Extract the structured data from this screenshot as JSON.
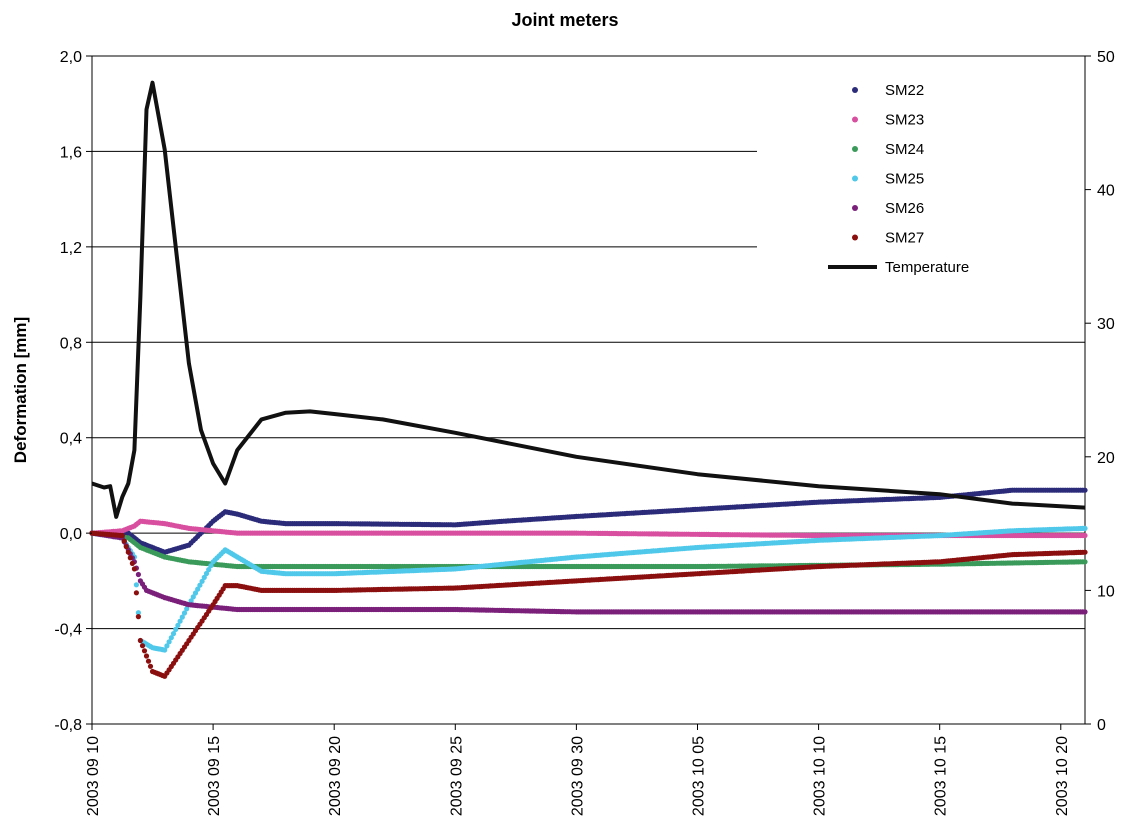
{
  "chart_data": {
    "type": "scatter",
    "title": "Joint meters",
    "ylabel": "Deformation [mm]",
    "y2label": "",
    "x_start": "2003-09-10",
    "x_end": "2003-10-21",
    "xticks": [
      "2003 09 10",
      "2003 09 15",
      "2003 09 20",
      "2003 09 25",
      "2003 09 30",
      "2003 10 05",
      "2003 10 10",
      "2003 10 15",
      "2003 10 20"
    ],
    "yticks": [
      "-0,8",
      "-0,4",
      "0,0",
      "0,4",
      "0,8",
      "1,2",
      "1,6",
      "2,0"
    ],
    "y2ticks": [
      "0",
      "10",
      "20",
      "30",
      "40",
      "50"
    ],
    "ylim": [
      -0.8,
      2.0
    ],
    "y2lim": [
      0,
      50
    ],
    "grid": "horizontal",
    "legend_position": "top-right",
    "series": [
      {
        "name": "SM22",
        "color": "#2b2b7a",
        "marker": "dot",
        "x": [
          "2003-09-10",
          "2003-09-11 12:00",
          "2003-09-12",
          "2003-09-13",
          "2003-09-14",
          "2003-09-15",
          "2003-09-15 12:00",
          "2003-09-16",
          "2003-09-17",
          "2003-09-18",
          "2003-09-20",
          "2003-09-25",
          "2003-09-27",
          "2003-09-30",
          "2003-10-05",
          "2003-10-10",
          "2003-10-15",
          "2003-10-18",
          "2003-10-21"
        ],
        "y": [
          0.0,
          0.0,
          -0.04,
          -0.08,
          -0.05,
          0.05,
          0.09,
          0.08,
          0.05,
          0.04,
          0.04,
          0.035,
          0.05,
          0.07,
          0.1,
          0.13,
          0.15,
          0.18,
          0.18
        ]
      },
      {
        "name": "SM23",
        "color": "#d94fa0",
        "marker": "dot",
        "x": [
          "2003-09-10",
          "2003-09-11 06:00",
          "2003-09-11 18:00",
          "2003-09-12",
          "2003-09-13",
          "2003-09-14",
          "2003-09-15",
          "2003-09-16",
          "2003-09-20",
          "2003-09-25",
          "2003-09-30",
          "2003-10-05",
          "2003-10-10",
          "2003-10-15",
          "2003-10-21"
        ],
        "y": [
          0.0,
          0.01,
          0.03,
          0.05,
          0.04,
          0.02,
          0.01,
          0.0,
          0.0,
          0.0,
          0.0,
          -0.005,
          -0.01,
          -0.01,
          -0.01
        ]
      },
      {
        "name": "SM24",
        "color": "#3a9a5a",
        "marker": "dot",
        "x": [
          "2003-09-10",
          "2003-09-11 12:00",
          "2003-09-12",
          "2003-09-13",
          "2003-09-14",
          "2003-09-15",
          "2003-09-16",
          "2003-09-18",
          "2003-09-20",
          "2003-09-25",
          "2003-09-30",
          "2003-10-05",
          "2003-10-10",
          "2003-10-15",
          "2003-10-21"
        ],
        "y": [
          0.0,
          -0.02,
          -0.06,
          -0.1,
          -0.12,
          -0.13,
          -0.14,
          -0.14,
          -0.14,
          -0.14,
          -0.14,
          -0.14,
          -0.135,
          -0.13,
          -0.12
        ]
      },
      {
        "name": "SM25",
        "color": "#4fc8ea",
        "marker": "dot",
        "x": [
          "2003-09-10",
          "2003-09-11 06:00",
          "2003-09-11 18:00",
          "2003-09-12",
          "2003-09-12 12:00",
          "2003-09-13",
          "2003-09-14",
          "2003-09-15",
          "2003-09-15 12:00",
          "2003-09-16",
          "2003-09-17",
          "2003-09-18",
          "2003-09-20",
          "2003-09-25",
          "2003-09-30",
          "2003-10-05",
          "2003-10-10",
          "2003-10-15",
          "2003-10-18",
          "2003-10-21"
        ],
        "y": [
          0.0,
          -0.02,
          -0.1,
          -0.45,
          -0.48,
          -0.49,
          -0.3,
          -0.12,
          -0.07,
          -0.1,
          -0.16,
          -0.17,
          -0.17,
          -0.15,
          -0.1,
          -0.06,
          -0.03,
          -0.01,
          0.01,
          0.02
        ]
      },
      {
        "name": "SM26",
        "color": "#7a1f7a",
        "marker": "dot",
        "x": [
          "2003-09-10",
          "2003-09-11 06:00",
          "2003-09-11 18:00",
          "2003-09-12",
          "2003-09-12 06:00",
          "2003-09-13",
          "2003-09-14",
          "2003-09-15",
          "2003-09-16",
          "2003-09-20",
          "2003-09-25",
          "2003-09-30",
          "2003-10-05",
          "2003-10-10",
          "2003-10-15",
          "2003-10-21"
        ],
        "y": [
          0.0,
          -0.02,
          -0.12,
          -0.2,
          -0.24,
          -0.27,
          -0.3,
          -0.31,
          -0.32,
          -0.32,
          -0.32,
          -0.33,
          -0.33,
          -0.33,
          -0.33,
          -0.33
        ]
      },
      {
        "name": "SM27",
        "color": "#8b0f0f",
        "marker": "dot",
        "x": [
          "2003-09-10",
          "2003-09-11 06:00",
          "2003-09-11 18:00",
          "2003-09-12",
          "2003-09-12 12:00",
          "2003-09-13",
          "2003-09-14",
          "2003-09-15",
          "2003-09-15 12:00",
          "2003-09-16",
          "2003-09-17",
          "2003-09-20",
          "2003-09-25",
          "2003-09-30",
          "2003-10-05",
          "2003-10-10",
          "2003-10-15",
          "2003-10-18",
          "2003-10-21"
        ],
        "y": [
          0.0,
          -0.01,
          -0.15,
          -0.45,
          -0.58,
          -0.6,
          -0.45,
          -0.3,
          -0.22,
          -0.22,
          -0.24,
          -0.24,
          -0.23,
          -0.2,
          -0.17,
          -0.14,
          -0.12,
          -0.09,
          -0.08
        ]
      },
      {
        "name": "Temperature",
        "color": "#111111",
        "marker": "line",
        "axis": "right",
        "x": [
          "2003-09-10",
          "2003-09-10 12:00",
          "2003-09-10 18:00",
          "2003-09-11",
          "2003-09-11 06:00",
          "2003-09-11 12:00",
          "2003-09-11 18:00",
          "2003-09-12",
          "2003-09-12 06:00",
          "2003-09-12 12:00",
          "2003-09-13",
          "2003-09-13 12:00",
          "2003-09-14",
          "2003-09-14 12:00",
          "2003-09-15",
          "2003-09-15 12:00",
          "2003-09-16",
          "2003-09-17",
          "2003-09-18",
          "2003-09-19",
          "2003-09-20",
          "2003-09-22",
          "2003-09-25",
          "2003-09-30",
          "2003-10-05",
          "2003-10-10",
          "2003-10-15",
          "2003-10-18",
          "2003-10-21"
        ],
        "y": [
          18.0,
          17.7,
          17.8,
          15.5,
          17.0,
          18.0,
          20.5,
          32.0,
          46.0,
          48.0,
          43.0,
          35.0,
          27.0,
          22.0,
          19.5,
          18.0,
          20.5,
          22.8,
          23.3,
          23.4,
          23.2,
          22.8,
          21.8,
          20.0,
          18.7,
          17.8,
          17.2,
          16.5,
          16.2
        ]
      }
    ]
  }
}
